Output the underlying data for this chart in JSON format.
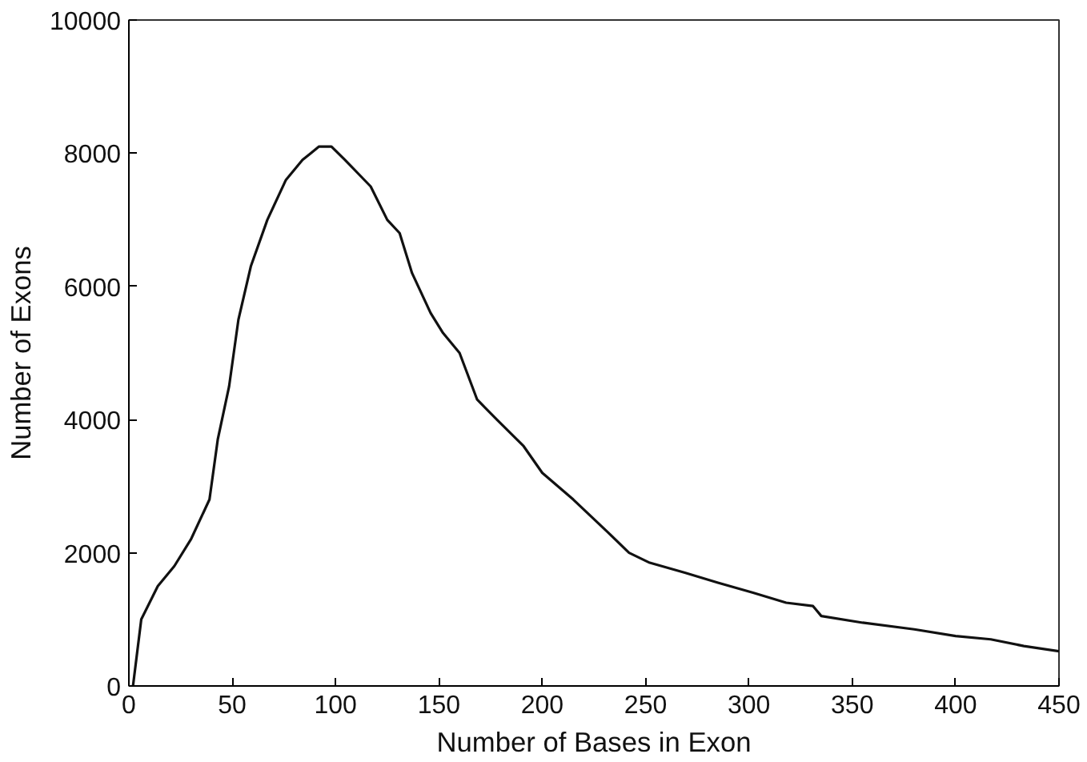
{
  "chart_data": {
    "type": "line",
    "xlabel": "Number of Bases in Exon",
    "ylabel": "Number of Exons",
    "x": [
      2,
      6,
      14,
      22,
      30,
      39,
      43,
      48.5,
      53,
      59,
      67,
      76,
      84,
      88,
      92,
      98,
      104.5,
      117,
      125,
      131,
      137,
      146,
      152,
      160,
      168.5,
      178,
      191,
      200,
      215,
      232,
      242,
      252,
      269,
      285,
      302,
      318,
      331,
      335,
      355,
      380,
      400,
      417,
      433,
      450
    ],
    "series": [
      {
        "color": "#111111",
        "values": [
          0,
          1000,
          1500,
          1800,
          2200,
          2800,
          3700,
          4500,
          5500,
          6300,
          7000,
          7600,
          7900,
          8000,
          8100,
          8100,
          7900,
          7500,
          7000,
          6800,
          6200,
          5600,
          5300,
          5000,
          4300,
          4000,
          3600,
          3200,
          2800,
          2300,
          2000,
          1850,
          1700,
          1550,
          1400,
          1250,
          1200,
          1050,
          950,
          850,
          750,
          700,
          600,
          520
        ]
      }
    ],
    "xlim": [
      0,
      450
    ],
    "xticks": [
      0,
      50,
      100,
      150,
      200,
      250,
      300,
      350,
      400,
      450
    ],
    "ylim": [
      0,
      10000
    ],
    "yticks": [
      0,
      2000,
      4000,
      6000,
      8000,
      10000
    ],
    "grid": false,
    "marker": "none",
    "line_style": "solid"
  }
}
